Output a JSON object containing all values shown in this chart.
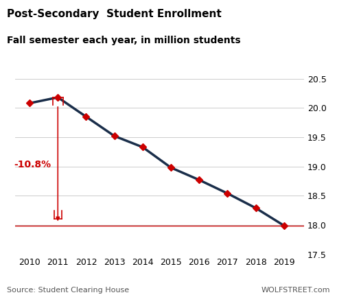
{
  "title_line1": "Post-Secondary  Student Enrollment",
  "title_line2": "Fall semester each year, in million students",
  "years": [
    2010,
    2011,
    2012,
    2013,
    2014,
    2015,
    2016,
    2017,
    2018,
    2019
  ],
  "values": [
    20.08,
    20.18,
    19.85,
    19.52,
    19.33,
    18.98,
    18.77,
    18.54,
    18.29,
    17.99
  ],
  "ylim": [
    17.5,
    20.5
  ],
  "yticks": [
    17.5,
    18.0,
    18.5,
    19.0,
    19.5,
    20.0,
    20.5
  ],
  "line_color": "#1a2e4a",
  "marker_color": "#cc0000",
  "marker_size": 5,
  "line_width": 2.5,
  "annotation_text": "-10.8%",
  "annotation_color": "#cc0000",
  "arrow_color": "#cc0000",
  "hline_value": 17.99,
  "hline_color": "#cc0000",
  "source_text": "Source: Student Clearing House",
  "watermark_text": "WOLFSTREET.com",
  "background_color": "#ffffff",
  "grid_color": "#cccccc",
  "title_fontsize": 11,
  "subtitle_fontsize": 10,
  "tick_fontsize": 9,
  "source_fontsize": 8,
  "annot_fontsize": 10
}
